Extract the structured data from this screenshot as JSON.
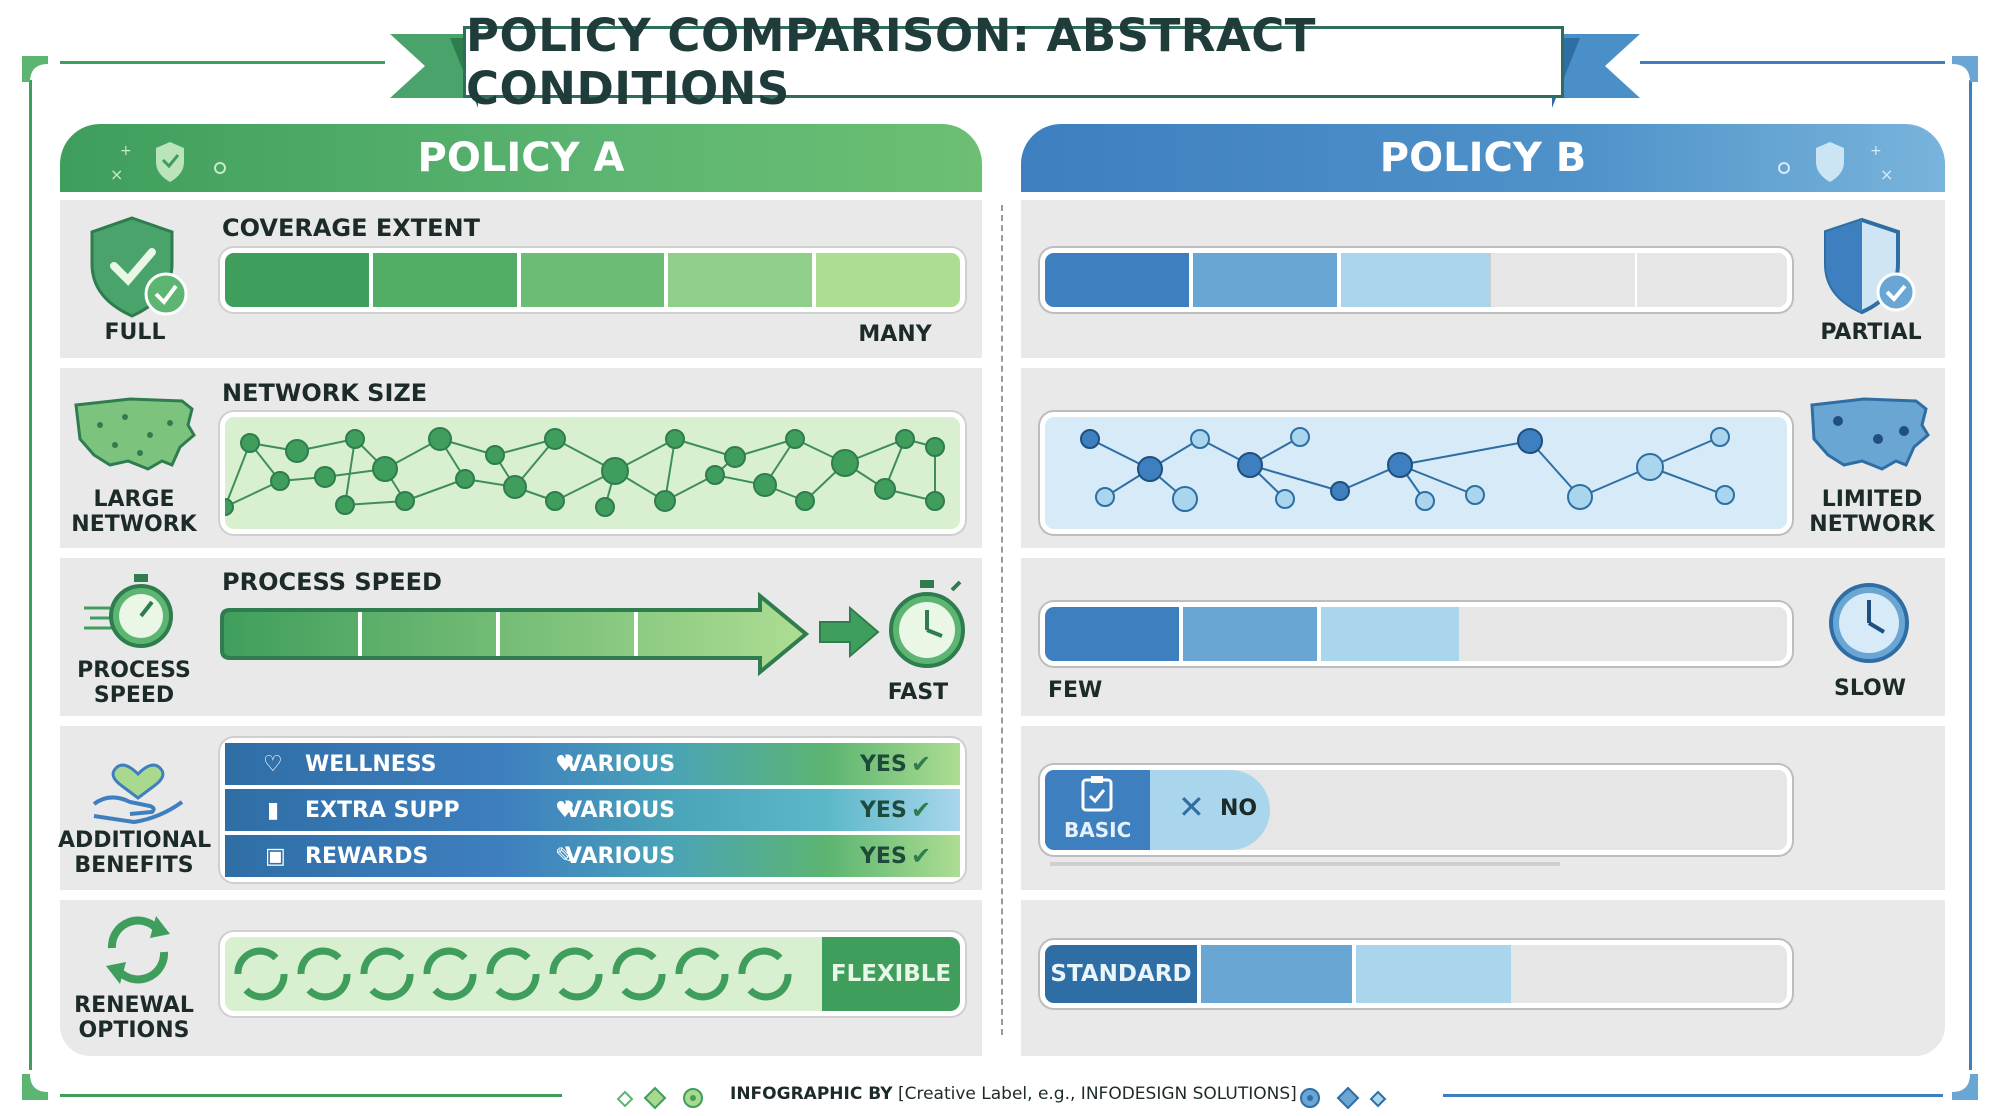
{
  "title": "POLICY COMPARISON: ABSTRACT CONDITIONS",
  "colors": {
    "green_dark": "#3f9e5c",
    "green_mid": "#5cb571",
    "green_light": "#a8d98f",
    "blue_dark": "#3e7fbf",
    "blue_mid": "#6aa6d3",
    "blue_light": "#a9d6ec",
    "row_bg": "#e9e9e9"
  },
  "policy_a": {
    "header": "POLICY A",
    "coverage": {
      "title": "COVERAGE EXTENT",
      "icon_label": "FULL",
      "end_label": "MANY",
      "level": 1.0
    },
    "network": {
      "title": "NETWORK SIZE",
      "icon_label_1": "LARGE",
      "icon_label_2": "NETWORK"
    },
    "speed": {
      "title": "PROCESS SPEED",
      "icon_label_1": "PROCESS",
      "icon_label_2": "SPEED",
      "end_label": "FAST"
    },
    "benefits": {
      "icon_label_1": "ADDITIONAL",
      "icon_label_2": "BENEFITS",
      "rows": [
        {
          "name": "WELLNESS",
          "detail": "VARIOUS",
          "status": "YES"
        },
        {
          "name": "EXTRA SUPP",
          "detail": "VARIOUS",
          "status": "YES"
        },
        {
          "name": "REWARDS",
          "detail": "VARIOUS",
          "status": "YES"
        }
      ]
    },
    "renewal": {
      "icon_label_1": "RENEWAL",
      "icon_label_2": "OPTIONS",
      "value": "FLEXIBLE"
    }
  },
  "policy_b": {
    "header": "POLICY B",
    "coverage": {
      "icon_label": "PARTIAL",
      "level": 0.6
    },
    "network": {
      "icon_label_1": "LIMITED",
      "icon_label_2": "NETWORK"
    },
    "speed": {
      "start_label": "FEW",
      "icon_label": "SLOW",
      "level": 0.57
    },
    "benefits": {
      "basic_label": "BASIC",
      "status": "NO"
    },
    "renewal": {
      "value": "STANDARD",
      "level": 0.62
    }
  },
  "footer": {
    "bold": "INFOGRAPHIC BY",
    "text": "[Creative Label, e.g., INFODESIGN SOLUTIONS]"
  }
}
